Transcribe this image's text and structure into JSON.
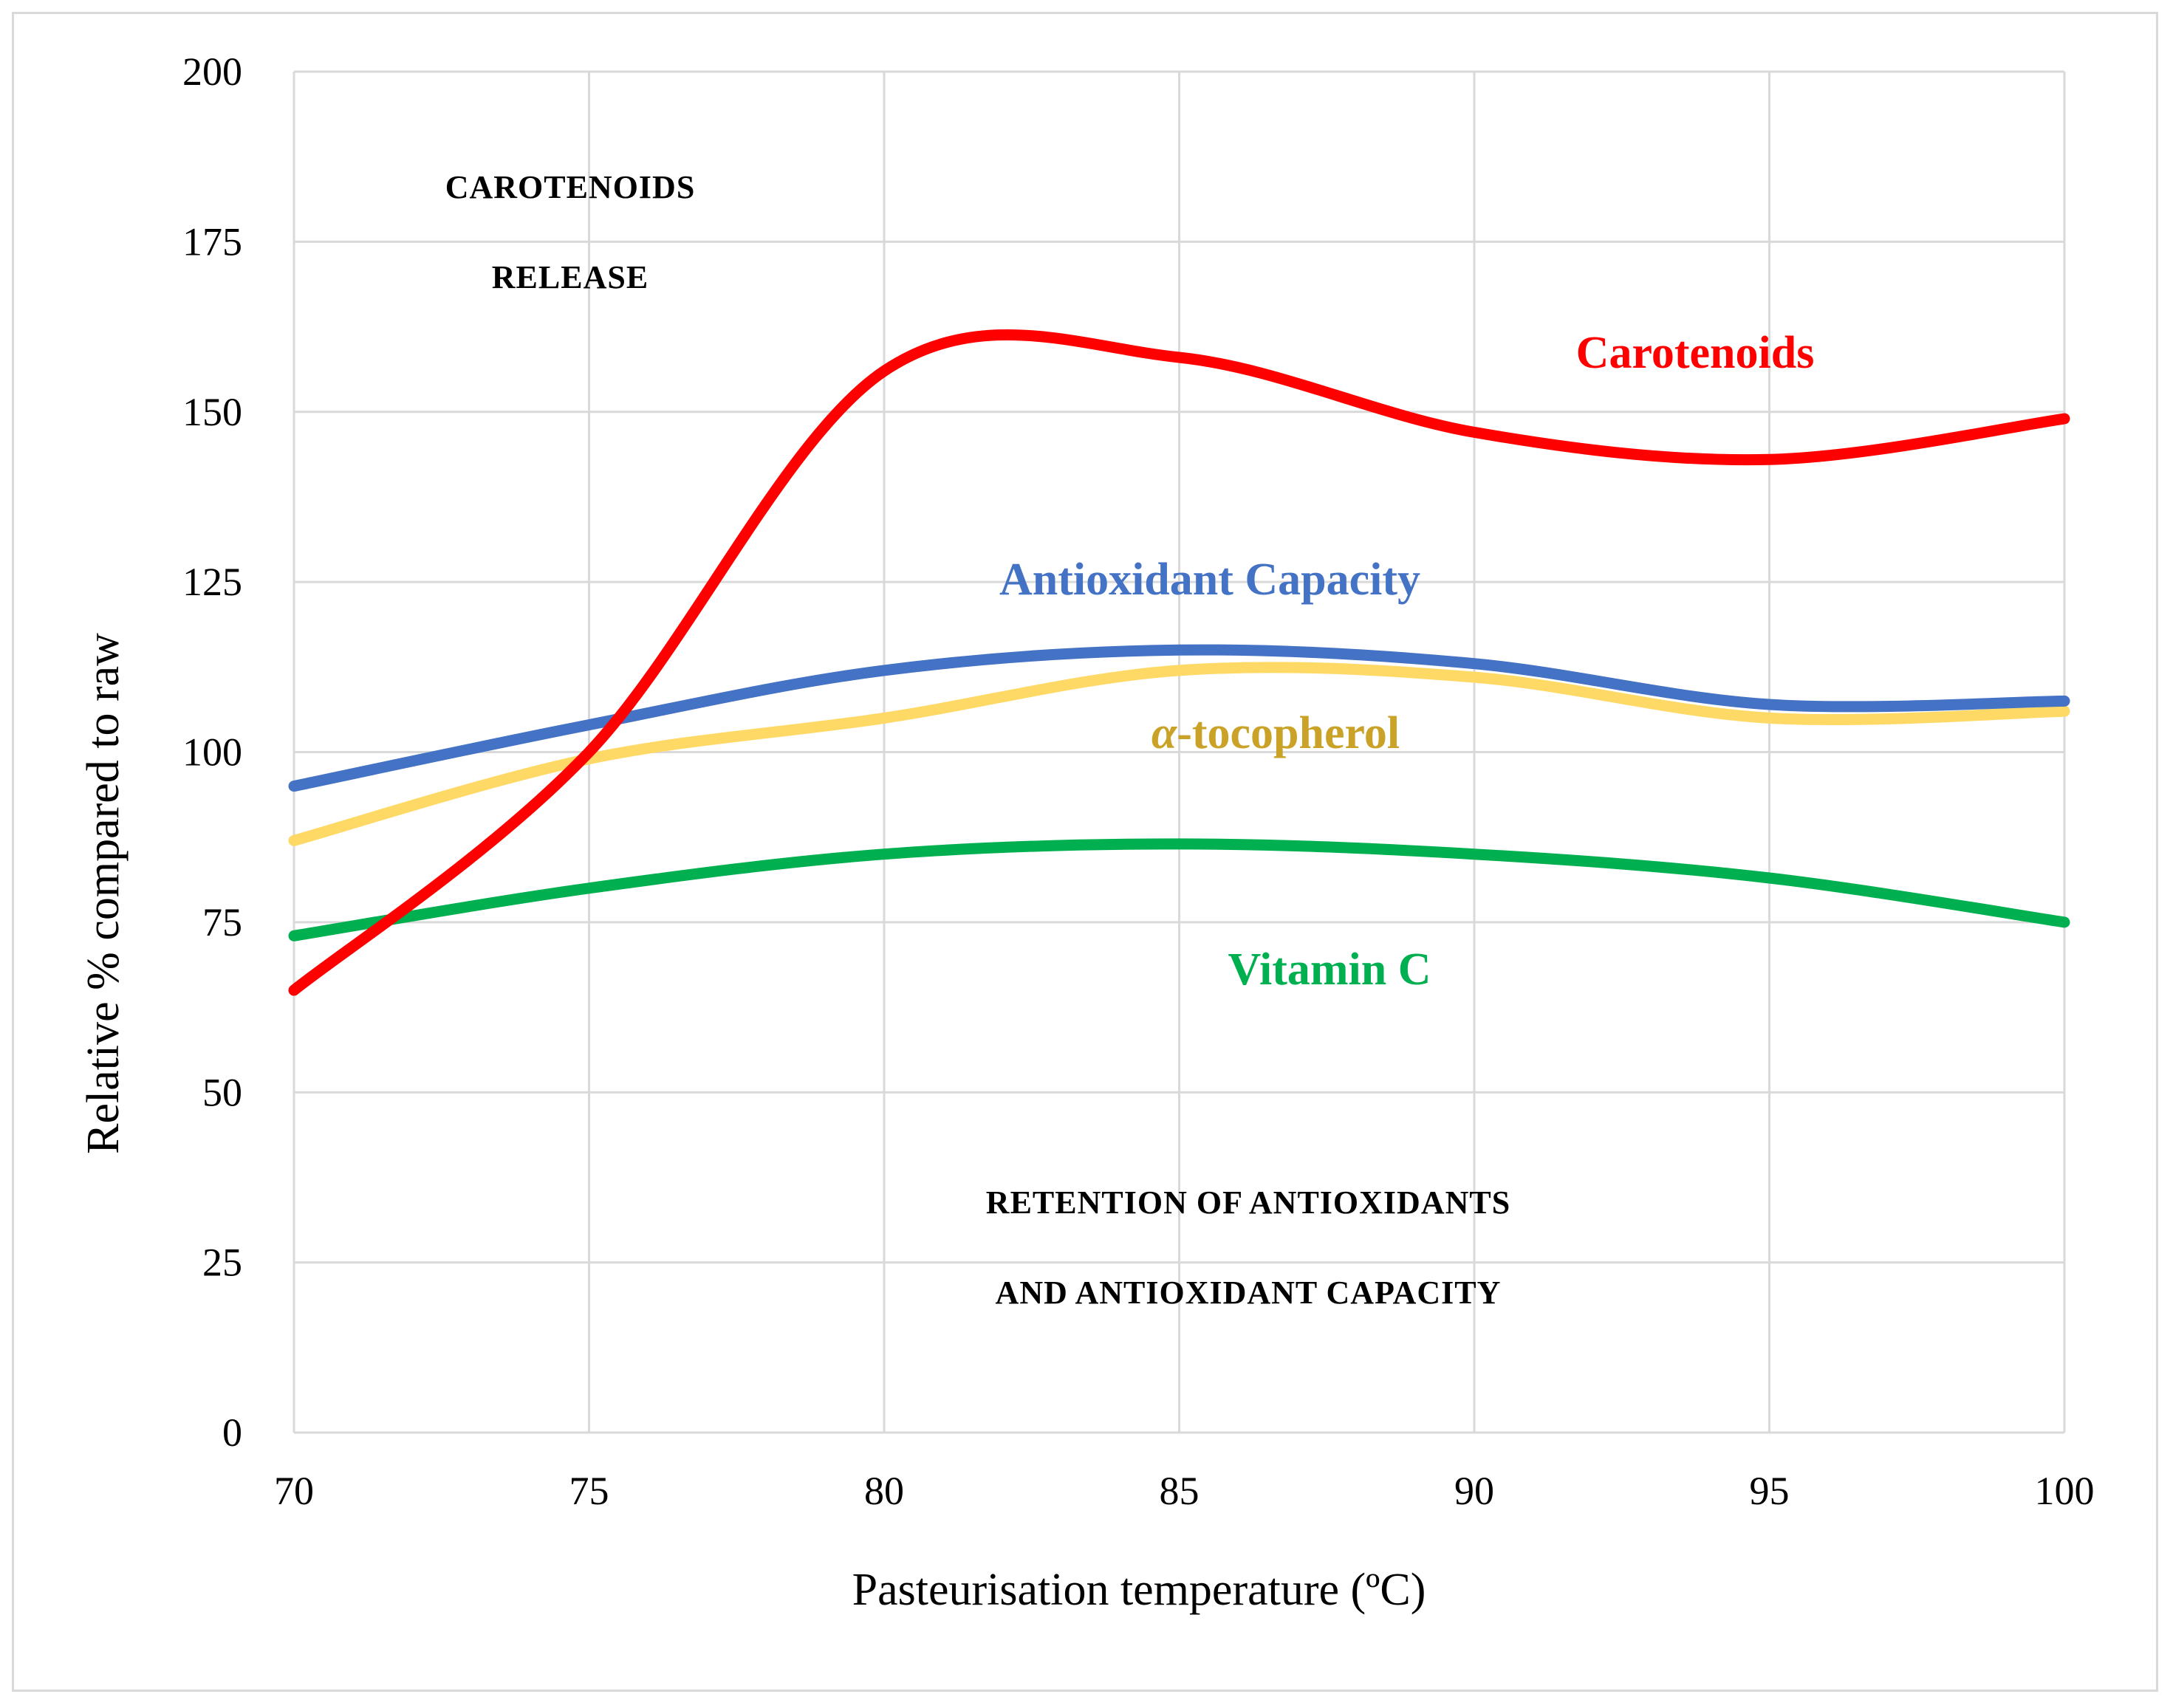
{
  "chart_data": {
    "type": "line",
    "xlabel": "Pasteurisation temperature (ºC)",
    "ylabel": "Relative % compared to raw",
    "xlim": [
      70,
      100
    ],
    "ylim": [
      0,
      200
    ],
    "x_ticks": [
      70,
      75,
      80,
      85,
      90,
      95,
      100
    ],
    "y_ticks": [
      0,
      25,
      50,
      75,
      100,
      125,
      150,
      175,
      200
    ],
    "grid": true,
    "x": [
      70,
      75,
      80,
      85,
      90,
      95,
      100
    ],
    "series": [
      {
        "name": "Carotenoids",
        "color": "#ff0000",
        "values": [
          65,
          100,
          156,
          158,
          147,
          143,
          149
        ]
      },
      {
        "name": "Antioxidant Capacity",
        "color": "#4472c4",
        "values": [
          95,
          104,
          112,
          115,
          113,
          107,
          107.5
        ]
      },
      {
        "name": "-tocopherol",
        "name_prefix": "α",
        "color": "#ffd966",
        "label_color": "#c9a227",
        "values": [
          87,
          99,
          105,
          112,
          111,
          105,
          106
        ]
      },
      {
        "name": "Vitamin C",
        "color": "#00b050",
        "values": [
          73,
          80,
          85,
          86.5,
          85,
          81.5,
          75
        ]
      }
    ],
    "annotations": {
      "top_left": [
        "CAROTENOIDS",
        "RELEASE"
      ],
      "bottom": [
        "RETENTION OF ANTIOXIDANTS",
        "AND ANTIOXIDANT CAPACITY"
      ]
    }
  }
}
